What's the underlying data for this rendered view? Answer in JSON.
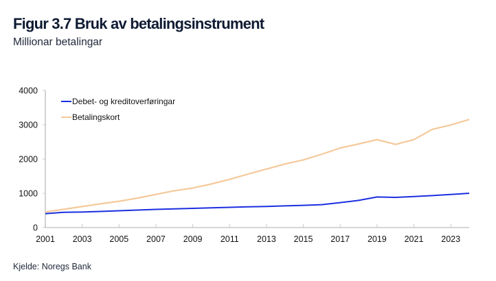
{
  "header": {
    "title": "Figur 3.7 Bruk av betalingsinstrument",
    "subtitle": "Millionar betalingar"
  },
  "footer": {
    "source": "Kjelde: Noregs Bank"
  },
  "chart_data": {
    "type": "line",
    "title": "Figur 3.7 Bruk av betalingsinstrument",
    "subtitle": "Millionar betalingar",
    "xlabel": "",
    "ylabel": "Millionar betalingar",
    "x": [
      2001,
      2002,
      2003,
      2004,
      2005,
      2006,
      2007,
      2008,
      2009,
      2010,
      2011,
      2012,
      2013,
      2014,
      2015,
      2016,
      2017,
      2018,
      2019,
      2020,
      2021,
      2022,
      2023,
      2024
    ],
    "xlim": [
      2001,
      2024
    ],
    "ylim": [
      0,
      4000
    ],
    "x_ticks": [
      "2001",
      "2003",
      "2005",
      "2007",
      "2009",
      "2011",
      "2013",
      "2015",
      "2017",
      "2019",
      "2021",
      "2023"
    ],
    "x_tick_values": [
      2001,
      2003,
      2005,
      2007,
      2009,
      2011,
      2013,
      2015,
      2017,
      2019,
      2021,
      2023
    ],
    "y_ticks": [
      "0",
      "1000",
      "2000",
      "3000",
      "4000"
    ],
    "y_tick_values": [
      0,
      1000,
      2000,
      3000,
      4000
    ],
    "grid": false,
    "legend_position": "top-left",
    "series": [
      {
        "name": "Debet- og kreditoverføringar",
        "color": "#1a2ee0",
        "values": [
          405,
          445,
          453,
          470,
          490,
          510,
          530,
          545,
          560,
          575,
          590,
          605,
          615,
          633,
          647,
          667,
          727,
          793,
          893,
          880,
          905,
          933,
          965,
          1000
        ]
      },
      {
        "name": "Betalingskort",
        "color": "#f5c99a",
        "values": [
          455,
          533,
          613,
          693,
          767,
          860,
          967,
          1073,
          1153,
          1270,
          1407,
          1560,
          1707,
          1853,
          1973,
          2140,
          2320,
          2440,
          2565,
          2427,
          2567,
          2867,
          2993,
          3153
        ]
      }
    ]
  }
}
